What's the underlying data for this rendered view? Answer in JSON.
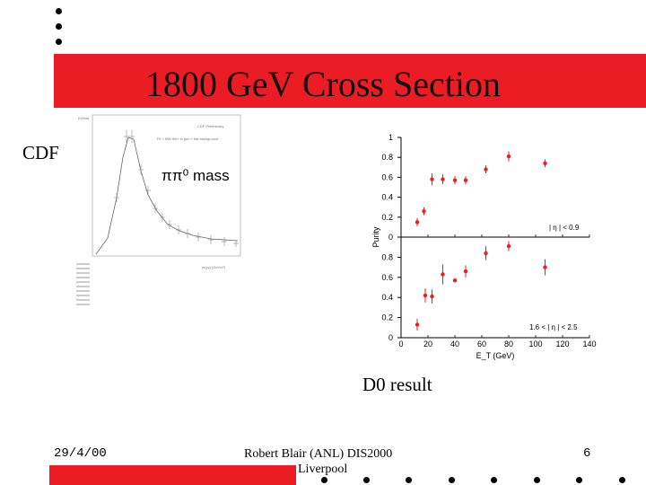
{
  "slide": {
    "title": "1800 GeV Cross Section",
    "cdf_label": "CDF",
    "pi_mass_label": "ππ⁰ mass",
    "d0_caption": "D0 result"
  },
  "footer": {
    "date": "29/4/00",
    "author_line1": "Robert Blair (ANL) DIS2000",
    "author_line2": "Liverpool",
    "page": "6"
  },
  "cdf_plot": {
    "header_line1": "CDF Preliminary",
    "header_line2": "Fit = BW Bkt+ N gen + flat background",
    "xlabel": "m(γγ) [GeV/c²]",
    "ylabel": "Events"
  },
  "d0_plot": {
    "y_label": "Purity",
    "x_label": "E_T (GeV)",
    "top_region": "| η | < 0.9",
    "bottom_region": "1.6 < | η | < 2.5",
    "colors": {
      "points": "#e8201e"
    }
  },
  "chart_data": [
    {
      "type": "scatter",
      "title": "",
      "xlabel": "E_T (GeV)",
      "ylabel": "Purity",
      "xlim": [
        0,
        140
      ],
      "ylim": [
        0,
        1
      ],
      "xticks": [
        0,
        20,
        40,
        60,
        80,
        100,
        120,
        140
      ],
      "yticks": [
        0,
        0.2,
        0.4,
        0.6,
        0.8,
        1
      ],
      "annotation": "| η | < 0.9",
      "series": [
        {
          "x": [
            12,
            17,
            23,
            31,
            40,
            48,
            63,
            80,
            107
          ],
          "y": [
            0.15,
            0.26,
            0.58,
            0.58,
            0.57,
            0.57,
            0.68,
            0.81,
            0.74
          ],
          "err": [
            0.04,
            0.04,
            0.06,
            0.05,
            0.04,
            0.04,
            0.04,
            0.05,
            0.04
          ]
        }
      ]
    },
    {
      "type": "scatter",
      "title": "",
      "xlabel": "E_T (GeV)",
      "ylabel": "Purity",
      "xlim": [
        0,
        140
      ],
      "ylim": [
        0,
        1
      ],
      "xticks": [
        0,
        20,
        40,
        60,
        80,
        100,
        120,
        140
      ],
      "yticks": [
        0,
        0.2,
        0.4,
        0.6,
        0.8
      ],
      "annotation": "1.6 < | η | < 2.5",
      "series": [
        {
          "x": [
            12,
            18,
            23,
            31,
            40,
            48,
            63,
            80,
            107
          ],
          "y": [
            0.13,
            0.42,
            0.41,
            0.63,
            0.57,
            0.66,
            0.84,
            0.91,
            0.7
          ],
          "err": [
            0.06,
            0.07,
            0.07,
            0.1,
            0.02,
            0.06,
            0.07,
            0.05,
            0.08
          ]
        }
      ]
    }
  ]
}
